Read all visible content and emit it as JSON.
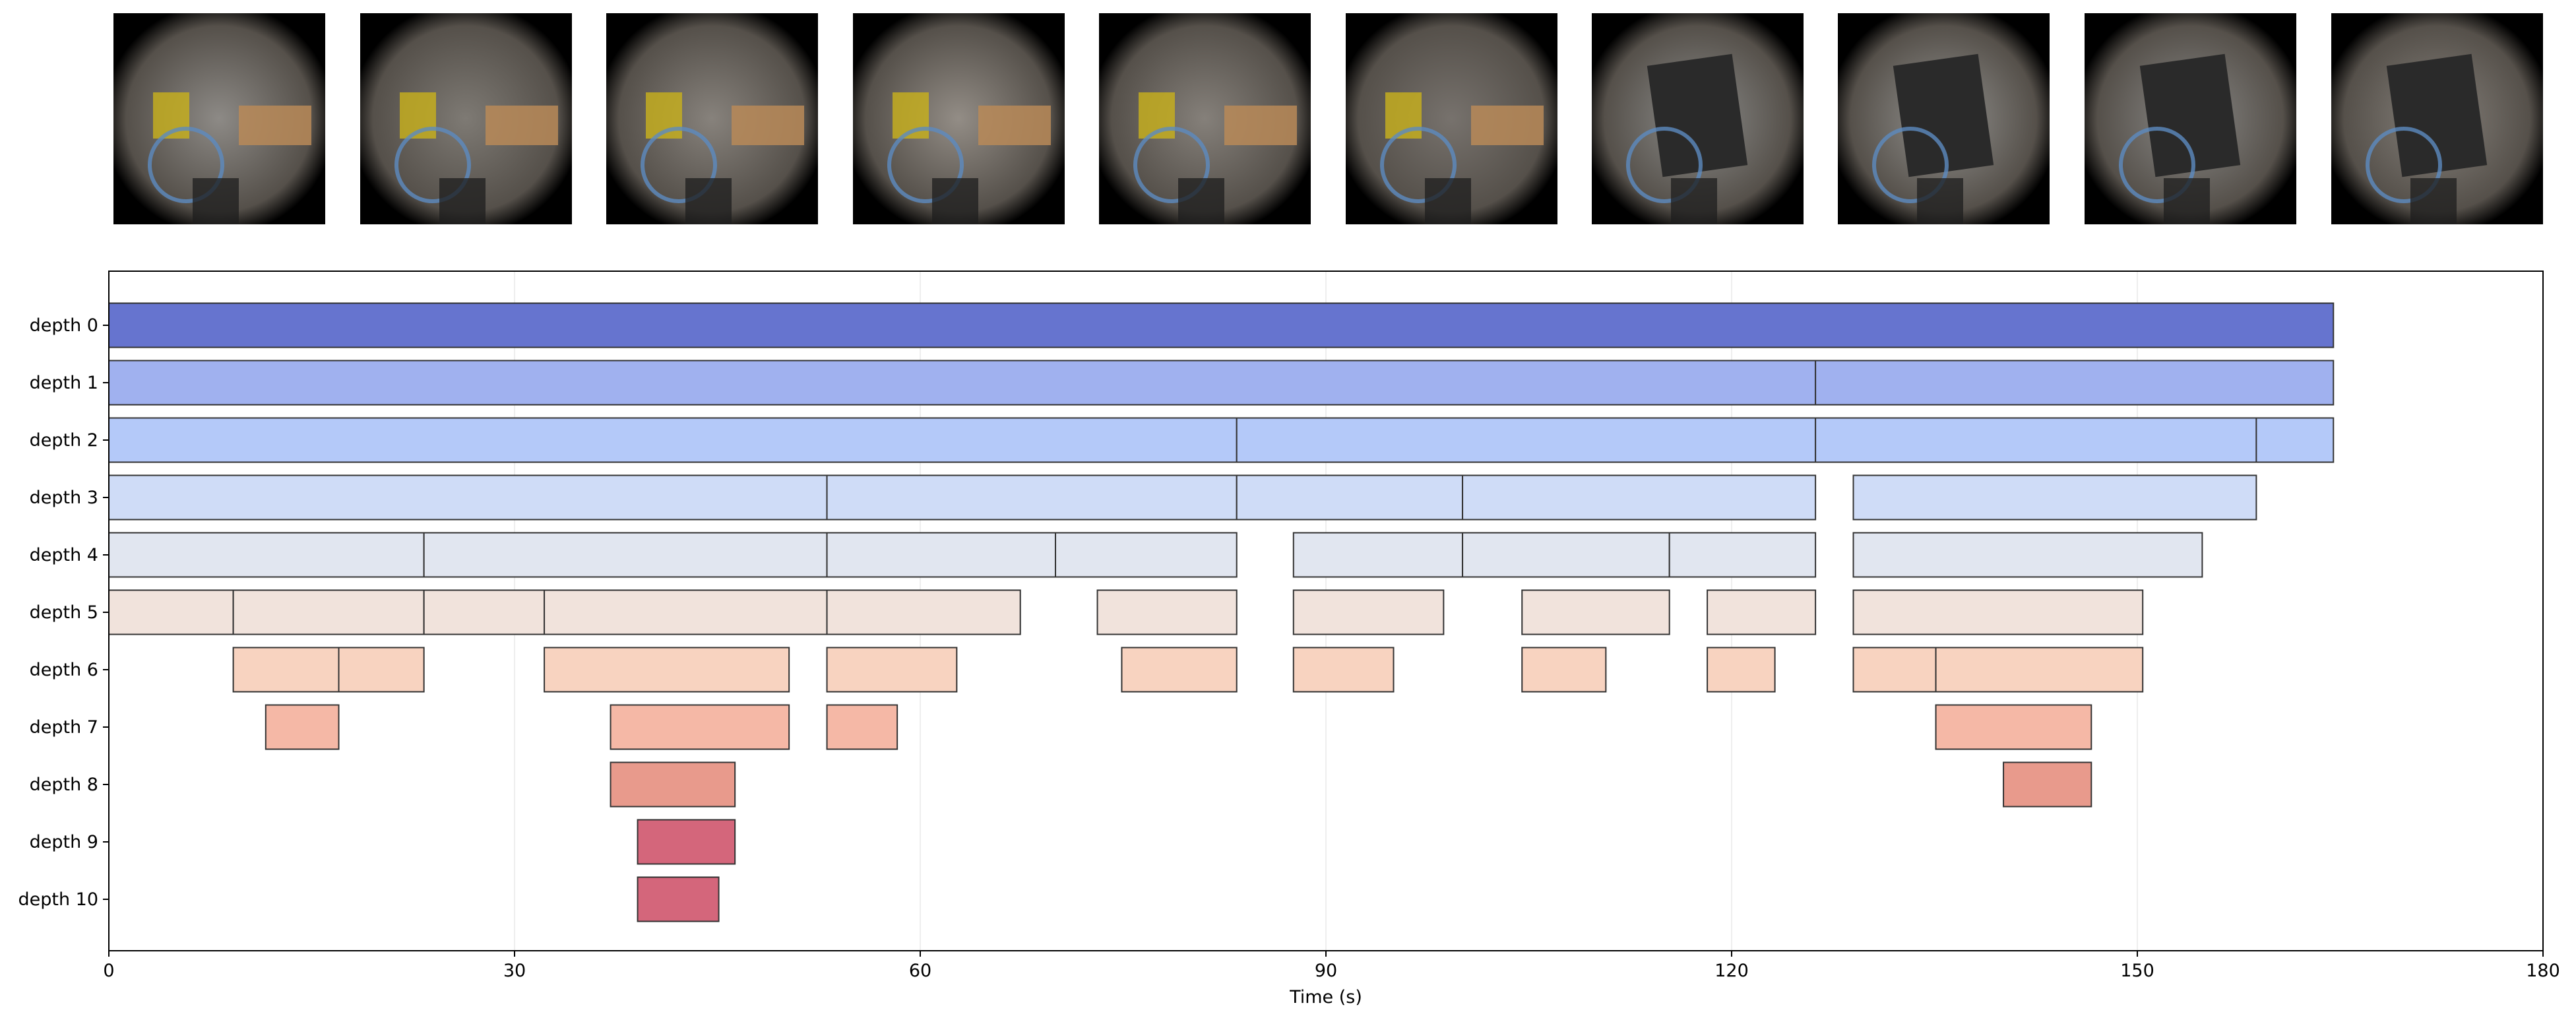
{
  "thumbnails": [
    {
      "icon": "egocentric-video-frame"
    },
    {
      "icon": "egocentric-video-frame"
    },
    {
      "icon": "egocentric-video-frame"
    },
    {
      "icon": "egocentric-video-frame"
    },
    {
      "icon": "egocentric-video-frame"
    },
    {
      "icon": "egocentric-video-frame"
    },
    {
      "icon": "egocentric-video-frame"
    },
    {
      "icon": "egocentric-video-frame"
    },
    {
      "icon": "egocentric-video-frame"
    },
    {
      "icon": "egocentric-video-frame"
    }
  ],
  "chart_data": {
    "type": "bar",
    "subtype": "hierarchical-timeline",
    "xlabel": "Time (s)",
    "ylabel": "",
    "xlim": [
      0,
      180
    ],
    "xticks": [
      0,
      30,
      60,
      90,
      120,
      150,
      180
    ],
    "xtick_labels": [
      "0",
      "30",
      "60",
      "90",
      "120",
      "150",
      "180"
    ],
    "grid": "vertical",
    "rows": [
      {
        "label": "depth 0",
        "color": "#6674cf",
        "segments": [
          [
            0,
            164.5
          ]
        ]
      },
      {
        "label": "depth 1",
        "color": "#a0b1ef",
        "segments": [
          [
            0,
            126.2
          ],
          [
            126.2,
            164.5
          ]
        ]
      },
      {
        "label": "depth 2",
        "color": "#b4c9f9",
        "segments": [
          [
            0,
            83.4
          ],
          [
            83.4,
            126.2
          ],
          [
            126.2,
            158.8
          ],
          [
            158.8,
            164.5
          ]
        ]
      },
      {
        "label": "depth 3",
        "color": "#cfdcf7",
        "segments": [
          [
            0,
            53.1
          ],
          [
            53.1,
            83.4
          ],
          [
            83.4,
            100.1
          ],
          [
            100.1,
            126.2
          ],
          [
            129.0,
            158.8
          ]
        ]
      },
      {
        "label": "depth 4",
        "color": "#e1e6f0",
        "segments": [
          [
            0,
            23.3
          ],
          [
            23.3,
            53.1
          ],
          [
            53.1,
            70.0
          ],
          [
            70.0,
            83.4
          ],
          [
            87.6,
            100.1
          ],
          [
            100.1,
            115.4
          ],
          [
            115.4,
            126.2
          ],
          [
            129.0,
            154.8
          ]
        ]
      },
      {
        "label": "depth 5",
        "color": "#f1e3dc",
        "segments": [
          [
            0,
            9.2
          ],
          [
            9.2,
            23.3
          ],
          [
            23.3,
            32.2
          ],
          [
            32.2,
            53.1
          ],
          [
            53.1,
            67.4
          ],
          [
            73.1,
            83.4
          ],
          [
            87.6,
            98.7
          ],
          [
            104.5,
            115.4
          ],
          [
            118.2,
            126.2
          ],
          [
            129.0,
            150.4
          ]
        ]
      },
      {
        "label": "depth 6",
        "color": "#f8d3c0",
        "segments": [
          [
            9.2,
            17.0
          ],
          [
            17.0,
            23.3
          ],
          [
            32.2,
            50.3
          ],
          [
            53.1,
            62.7
          ],
          [
            74.9,
            83.4
          ],
          [
            87.6,
            95.0
          ],
          [
            104.5,
            110.7
          ],
          [
            118.2,
            123.2
          ],
          [
            129.0,
            135.1
          ],
          [
            135.1,
            150.4
          ]
        ]
      },
      {
        "label": "depth 7",
        "color": "#f5b8a6",
        "segments": [
          [
            11.6,
            17.0
          ],
          [
            37.1,
            50.3
          ],
          [
            53.1,
            58.3
          ],
          [
            135.1,
            146.6
          ]
        ]
      },
      {
        "label": "depth 8",
        "color": "#e89a8c",
        "segments": [
          [
            37.1,
            46.3
          ],
          [
            140.1,
            146.6
          ]
        ]
      },
      {
        "label": "depth 9",
        "color": "#d4667b",
        "segments": [
          [
            39.1,
            46.3
          ]
        ]
      },
      {
        "label": "depth 10",
        "color": "#d4667b",
        "segments": [
          [
            39.1,
            45.1
          ]
        ]
      }
    ]
  }
}
